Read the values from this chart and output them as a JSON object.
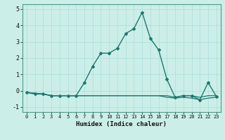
{
  "xlabel": "Humidex (Indice chaleur)",
  "x": [
    0,
    1,
    2,
    3,
    4,
    5,
    6,
    7,
    8,
    9,
    10,
    11,
    12,
    13,
    14,
    15,
    16,
    17,
    18,
    19,
    20,
    21,
    22,
    23
  ],
  "y_main": [
    -0.1,
    -0.2,
    -0.2,
    -0.3,
    -0.3,
    -0.3,
    -0.3,
    0.5,
    1.5,
    2.3,
    2.3,
    2.6,
    3.5,
    3.8,
    4.8,
    3.2,
    2.5,
    0.7,
    -0.4,
    -0.3,
    -0.3,
    -0.55,
    0.5,
    -0.35
  ],
  "y_flat1": [
    -0.1,
    -0.15,
    -0.2,
    -0.3,
    -0.3,
    -0.3,
    -0.3,
    -0.3,
    -0.3,
    -0.3,
    -0.3,
    -0.3,
    -0.3,
    -0.3,
    -0.3,
    -0.3,
    -0.3,
    -0.3,
    -0.4,
    -0.3,
    -0.3,
    -0.4,
    -0.3,
    -0.3
  ],
  "y_flat2": [
    -0.1,
    -0.15,
    -0.2,
    -0.3,
    -0.3,
    -0.3,
    -0.3,
    -0.3,
    -0.3,
    -0.3,
    -0.3,
    -0.3,
    -0.3,
    -0.3,
    -0.3,
    -0.3,
    -0.3,
    -0.4,
    -0.45,
    -0.4,
    -0.45,
    -0.55,
    -0.45,
    -0.4
  ],
  "line_color": "#1a7a6e",
  "bg_color": "#cceee8",
  "grid_color": "#aaddda",
  "ylim": [
    -1.3,
    5.3
  ],
  "xlim": [
    -0.5,
    23.5
  ],
  "yticks": [
    -1,
    0,
    1,
    2,
    3,
    4,
    5
  ],
  "xticks": [
    0,
    1,
    2,
    3,
    4,
    5,
    6,
    7,
    8,
    9,
    10,
    11,
    12,
    13,
    14,
    15,
    16,
    17,
    18,
    19,
    20,
    21,
    22,
    23
  ]
}
